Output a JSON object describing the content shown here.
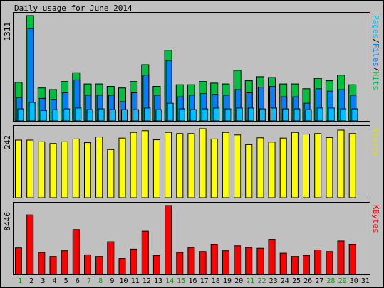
{
  "chart_data": {
    "type": "bar",
    "title": "Daily usage for June 2014",
    "categories": [
      "1",
      "2",
      "3",
      "4",
      "5",
      "6",
      "7",
      "8",
      "9",
      "10",
      "11",
      "12",
      "13",
      "14",
      "15",
      "16",
      "17",
      "18",
      "19",
      "20",
      "21",
      "22",
      "23",
      "24",
      "25",
      "26",
      "27",
      "28",
      "29",
      "30",
      "31"
    ],
    "weekend_days": [
      "1",
      "7",
      "8",
      "14",
      "15",
      "21",
      "22",
      "28",
      "29"
    ],
    "panels": [
      {
        "id": "hits_files_pages",
        "ymax_label": "1311",
        "ymax": 1311,
        "axis_label_parts": [
          "Pages",
          "/",
          "Files",
          "/",
          "Hits"
        ],
        "axis_label_colors": [
          "#00c0ff",
          "#000000",
          "#0080ff",
          "#000000",
          "#00c040"
        ],
        "series": [
          {
            "name": "Hits",
            "color": "#00c040",
            "values": [
              480,
              1311,
              410,
              390,
              490,
              600,
              460,
              460,
              430,
              410,
              490,
              700,
              430,
              880,
              450,
              450,
              490,
              470,
              460,
              630,
              500,
              550,
              540,
              460,
              460,
              400,
              530,
              500,
              570,
              450,
              0
            ]
          },
          {
            "name": "Files",
            "color": "#0080ff",
            "values": [
              290,
              1150,
              280,
              270,
              350,
              510,
              320,
              320,
              320,
              240,
              350,
              570,
              320,
              750,
              300,
              320,
              340,
              330,
              320,
              390,
              350,
              420,
              430,
              300,
              300,
              220,
              400,
              370,
              390,
              320,
              0
            ]
          },
          {
            "name": "Pages",
            "color": "#00c0ff",
            "values": [
              150,
              230,
              130,
              140,
              150,
              160,
              140,
              150,
              140,
              140,
              140,
              160,
              140,
              220,
              150,
              140,
              150,
              160,
              150,
              160,
              160,
              150,
              160,
              150,
              150,
              140,
              160,
              160,
              150,
              150,
              0
            ]
          }
        ]
      },
      {
        "id": "visits",
        "ymax_label": "242",
        "ymax": 242,
        "axis_label_parts": [
          "Visits"
        ],
        "axis_label_colors": [
          "#e0e000"
        ],
        "series": [
          {
            "name": "Visits",
            "color": "#ffff00",
            "values": [
              202,
              202,
              196,
              190,
              196,
              206,
              193,
              213,
              169,
              209,
              229,
              235,
              203,
              229,
              225,
              225,
              242,
              206,
              229,
              220,
              186,
              210,
              195,
              209,
              229,
              223,
              225,
              211,
              237,
              225,
              0
            ]
          }
        ]
      },
      {
        "id": "kbytes",
        "ymax_label": "8446",
        "ymax": 8446,
        "axis_label_parts": [
          "KBytes"
        ],
        "axis_label_colors": [
          "#ff0000"
        ],
        "series": [
          {
            "name": "KBytes",
            "color": "#ff0000",
            "values": [
              3250,
              7300,
              2700,
              2200,
              2900,
              5500,
              2400,
              2200,
              4000,
              1950,
              3100,
              5300,
              2300,
              8446,
              2700,
              3300,
              2800,
              3700,
              2900,
              3500,
              3300,
              3200,
              4300,
              2600,
              2200,
              2300,
              3000,
              2800,
              4100,
              3700,
              0
            ]
          }
        ]
      }
    ]
  }
}
